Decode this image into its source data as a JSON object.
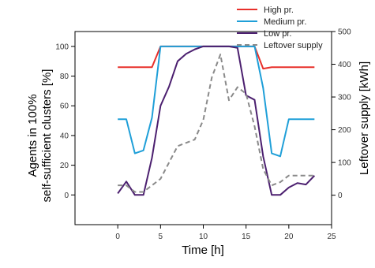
{
  "chart_data": {
    "type": "line",
    "title": "",
    "xlabel": "Time [h]",
    "ylabel_left": [
      "Agents in 100%",
      "self-sufficient clusters [%]"
    ],
    "ylabel_right": "Leftover supply [kWh]",
    "xlim": [
      -5,
      25
    ],
    "ylim_left": [
      -20,
      110
    ],
    "ylim_right": [
      -90,
      500
    ],
    "x_ticks": [
      0,
      5,
      10,
      15,
      20,
      25
    ],
    "y_left_ticks": [
      0,
      20,
      40,
      60,
      80,
      100
    ],
    "y_right_ticks": [
      0,
      100,
      200,
      300,
      400,
      500
    ],
    "grid": false,
    "legend_position": "top-right",
    "x": [
      0,
      1,
      2,
      3,
      4,
      5,
      6,
      7,
      8,
      9,
      10,
      11,
      12,
      13,
      14,
      15,
      16,
      17,
      18,
      19,
      20,
      21,
      22,
      23
    ],
    "series": [
      {
        "name": "High pr.",
        "axis": "left",
        "color": "#e8302b",
        "dash": false,
        "values": [
          86,
          86,
          86,
          86,
          86,
          100,
          100,
          100,
          100,
          100,
          100,
          100,
          100,
          100,
          100,
          100,
          100,
          85,
          86,
          86,
          86,
          86,
          86,
          86
        ]
      },
      {
        "name": "Medium pr.",
        "axis": "left",
        "color": "#1f9fd8",
        "dash": false,
        "values": [
          51,
          51,
          28,
          30,
          52,
          100,
          100,
          100,
          100,
          100,
          100,
          100,
          100,
          100,
          100,
          100,
          100,
          72,
          28,
          26,
          51,
          51,
          51,
          51
        ]
      },
      {
        "name": "Low pr.",
        "axis": "left",
        "color": "#4b1f6f",
        "dash": false,
        "values": [
          1,
          9,
          0,
          0,
          25,
          60,
          73,
          90,
          95,
          98,
          100,
          100,
          100,
          100,
          99,
          67,
          64,
          26,
          0,
          0,
          5,
          8,
          7,
          13
        ]
      },
      {
        "name": "Leftover supply",
        "axis": "right",
        "color": "#8a8a8a",
        "dash": true,
        "values": [
          30,
          30,
          10,
          10,
          30,
          50,
          100,
          150,
          160,
          170,
          230,
          360,
          430,
          290,
          330,
          310,
          210,
          80,
          30,
          40,
          60,
          60,
          60,
          60
        ]
      }
    ]
  }
}
